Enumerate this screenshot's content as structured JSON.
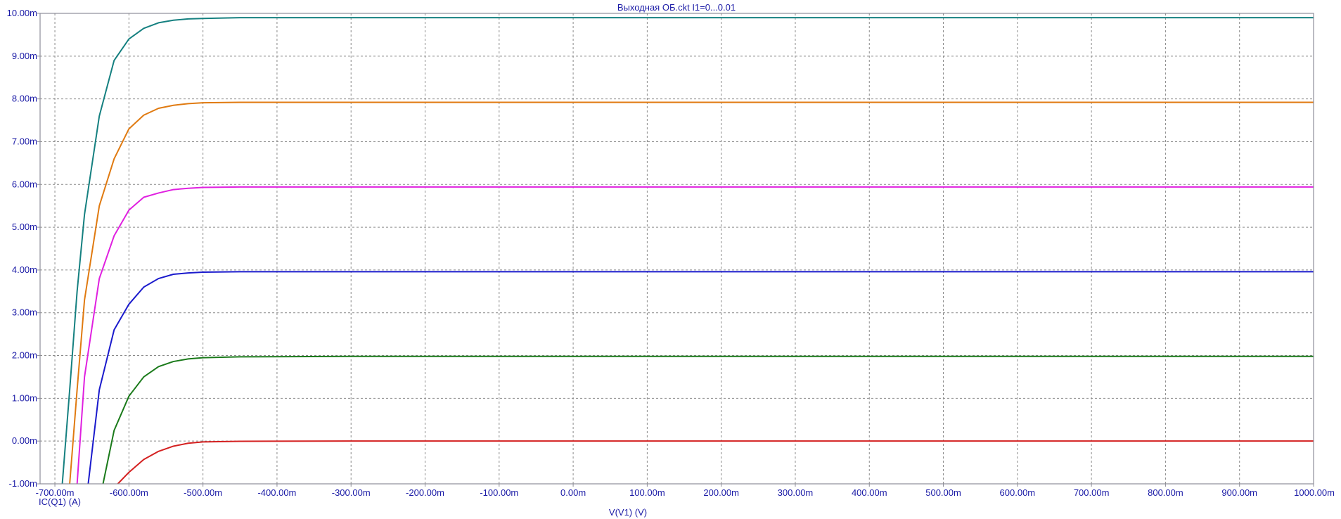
{
  "chart_data": {
    "type": "line",
    "title": "Выходная ОБ.ckt I1=0...0.01",
    "xlabel": "V(V1) (V)",
    "ylabel": "IC(Q1) (A)",
    "xlim": [
      -0.72,
      1.0
    ],
    "ylim": [
      -0.001,
      0.01
    ],
    "x_tick_values": [
      -0.7,
      -0.6,
      -0.5,
      -0.4,
      -0.3,
      -0.2,
      -0.1,
      0.0,
      0.1,
      0.2,
      0.3,
      0.4,
      0.5,
      0.6,
      0.7,
      0.8,
      0.9,
      1.0
    ],
    "x_tick_labels": [
      "-700.00m",
      "-600.00m",
      "-500.00m",
      "-400.00m",
      "-300.00m",
      "-200.00m",
      "-100.00m",
      "0.00m",
      "100.00m",
      "200.00m",
      "300.00m",
      "400.00m",
      "500.00m",
      "600.00m",
      "700.00m",
      "800.00m",
      "900.00m",
      "1000.00m"
    ],
    "y_tick_values": [
      -0.001,
      0.0,
      0.001,
      0.002,
      0.003,
      0.004,
      0.005,
      0.006,
      0.007,
      0.008,
      0.009,
      0.01
    ],
    "y_tick_labels": [
      "-1.00m",
      "0.00m",
      "1.00m",
      "2.00m",
      "3.00m",
      "4.00m",
      "5.00m",
      "6.00m",
      "7.00m",
      "8.00m",
      "9.00m",
      "10.00m"
    ],
    "grid": true,
    "legend": false,
    "series": [
      {
        "color": "#d42020",
        "x": [
          -0.615,
          -0.6,
          -0.58,
          -0.56,
          -0.54,
          -0.52,
          -0.5,
          -0.45,
          -0.3,
          0.0,
          0.5,
          1.0
        ],
        "y": [
          -0.001,
          -0.00073,
          -0.00043,
          -0.00024,
          -0.00012,
          -5e-05,
          -2e-05,
          -5e-06,
          0.0,
          0.0,
          0.0,
          0.0
        ]
      },
      {
        "color": "#1a7a1a",
        "x": [
          -0.635,
          -0.62,
          -0.6,
          -0.58,
          -0.56,
          -0.54,
          -0.52,
          -0.5,
          -0.45,
          -0.3,
          0.0,
          0.5,
          1.0
        ],
        "y": [
          -0.001,
          0.00025,
          0.00105,
          0.0015,
          0.00174,
          0.00186,
          0.00192,
          0.00195,
          0.00197,
          0.00198,
          0.00198,
          0.00198,
          0.00198
        ]
      },
      {
        "color": "#1a1acc",
        "x": [
          -0.655,
          -0.64,
          -0.62,
          -0.6,
          -0.58,
          -0.56,
          -0.54,
          -0.52,
          -0.5,
          -0.45,
          -0.3,
          0.0,
          0.5,
          1.0
        ],
        "y": [
          -0.001,
          0.0012,
          0.0026,
          0.0032,
          0.0036,
          0.0038,
          0.0039,
          0.00393,
          0.00395,
          0.00396,
          0.00396,
          0.00396,
          0.00396,
          0.00396
        ]
      },
      {
        "color": "#e020e0",
        "x": [
          -0.67,
          -0.66,
          -0.64,
          -0.62,
          -0.6,
          -0.58,
          -0.56,
          -0.54,
          -0.52,
          -0.5,
          -0.45,
          -0.3,
          0.0,
          0.5,
          1.0
        ],
        "y": [
          -0.001,
          0.0015,
          0.0038,
          0.0048,
          0.0054,
          0.0057,
          0.0058,
          0.00588,
          0.00591,
          0.00593,
          0.00594,
          0.00594,
          0.00594,
          0.00594,
          0.00594
        ]
      },
      {
        "color": "#e07a10",
        "x": [
          -0.68,
          -0.67,
          -0.66,
          -0.64,
          -0.62,
          -0.6,
          -0.58,
          -0.56,
          -0.54,
          -0.52,
          -0.5,
          -0.45,
          -0.3,
          0.0,
          0.5,
          1.0
        ],
        "y": [
          -0.001,
          0.0012,
          0.0033,
          0.0055,
          0.0066,
          0.0073,
          0.00762,
          0.00778,
          0.00785,
          0.00789,
          0.00791,
          0.00792,
          0.00792,
          0.00792,
          0.00792,
          0.00792
        ]
      },
      {
        "color": "#158080",
        "x": [
          -0.69,
          -0.68,
          -0.67,
          -0.66,
          -0.64,
          -0.62,
          -0.6,
          -0.58,
          -0.56,
          -0.54,
          -0.52,
          -0.5,
          -0.45,
          -0.3,
          0.0,
          0.5,
          1.0
        ],
        "y": [
          -0.001,
          0.0012,
          0.0035,
          0.0053,
          0.0076,
          0.0089,
          0.0094,
          0.00965,
          0.00978,
          0.00984,
          0.00987,
          0.00988,
          0.0099,
          0.0099,
          0.0099,
          0.0099,
          0.0099
        ]
      }
    ]
  }
}
